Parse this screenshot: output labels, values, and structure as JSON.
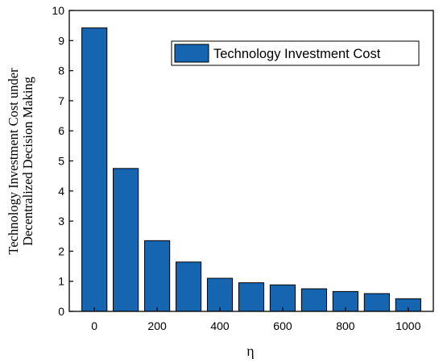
{
  "chart_data": {
    "type": "bar",
    "categories": [
      "0",
      "100",
      "200",
      "300",
      "400",
      "500",
      "600",
      "700",
      "800",
      "900",
      "1000"
    ],
    "x": [
      0,
      100,
      200,
      300,
      400,
      500,
      600,
      700,
      800,
      900,
      1000
    ],
    "series": [
      {
        "name": "Technology Investment Cost",
        "color": "#1565b0",
        "values": [
          9.42,
          4.75,
          2.35,
          1.64,
          1.1,
          0.95,
          0.88,
          0.75,
          0.66,
          0.59,
          0.42
        ]
      }
    ],
    "xlabel": "η",
    "ylabel_lines": [
      "Technology Investment Cost under",
      "Decentralized Decision Making"
    ],
    "xlim": [
      -80,
      1080
    ],
    "ylim": [
      0,
      10
    ],
    "xticks": [
      "0",
      "200",
      "400",
      "600",
      "800",
      "1000"
    ],
    "xtick_values": [
      0,
      200,
      400,
      600,
      800,
      1000
    ],
    "yticks": [
      "0",
      "1",
      "2",
      "3",
      "4",
      "5",
      "6",
      "7",
      "8",
      "9",
      "10"
    ],
    "ytick_values": [
      0,
      1,
      2,
      3,
      4,
      5,
      6,
      7,
      8,
      9,
      10
    ],
    "bar_width_units": 80,
    "grid": false,
    "legend_position": "top-right"
  }
}
